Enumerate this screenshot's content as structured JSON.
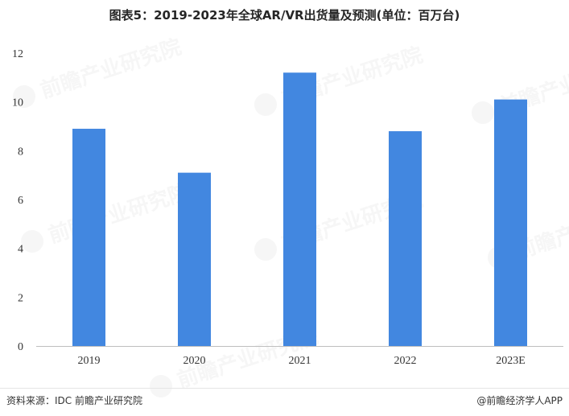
{
  "title": "图表5：2019-2023年全球AR/VR出货量及预测(单位：百万台)",
  "source": "资料来源：IDC 前瞻产业研究院",
  "credit": "@前瞻经济学人APP",
  "watermark": "前瞻产业研究院",
  "colors": {
    "bar": "#4287e0",
    "grid": "#d9d9d9",
    "axis": "#bfbfbf"
  },
  "chart_data": {
    "type": "bar",
    "title": "图表5：2019-2023年全球AR/VR出货量及预测(单位：百万台)",
    "categories": [
      "2019",
      "2020",
      "2021",
      "2022",
      "2023E"
    ],
    "values": [
      8.9,
      7.1,
      11.2,
      8.8,
      10.1
    ],
    "xlabel": "",
    "ylabel": "",
    "ylim": [
      0,
      12
    ],
    "yticks": [
      "0",
      "2",
      "4",
      "6",
      "8",
      "10",
      "12"
    ],
    "grid": false,
    "legend": "none"
  }
}
